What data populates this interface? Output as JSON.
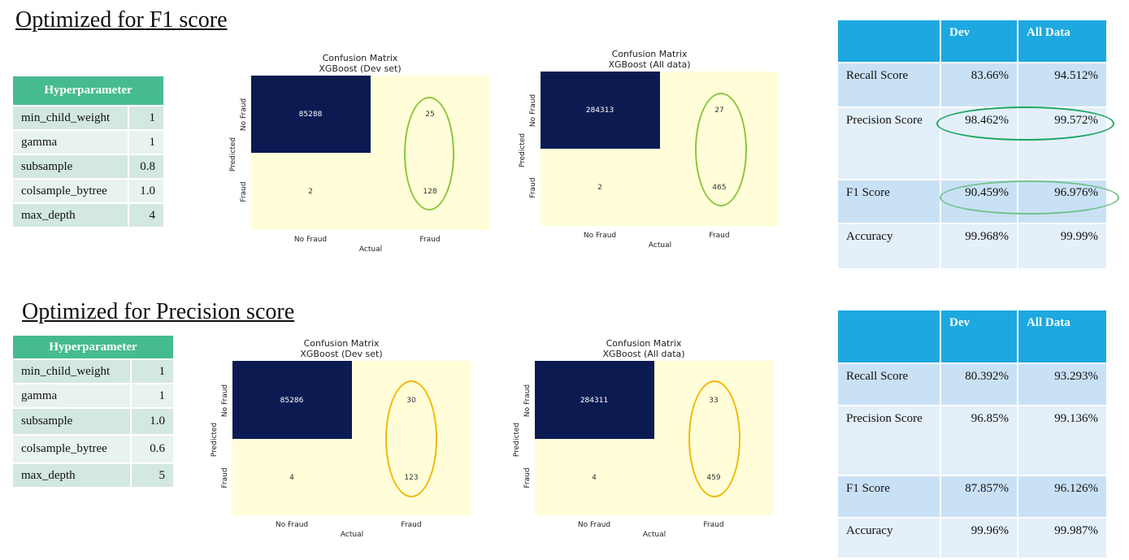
{
  "colors": {
    "ring_top": "#8cc63f",
    "ring_bottom": "#f2b705",
    "oval_precision": "#1aa661",
    "oval_f1": "#72c28e",
    "header_green": "#46bb8f",
    "header_blue": "#1ea8e0",
    "matrix_dark": "#0b1b52",
    "matrix_light": "#fffed8"
  },
  "sections": [
    {
      "title": "Optimized for F1 score",
      "hyperparameters": {
        "header": "Hyperparameter",
        "rows": [
          {
            "name": "min_child_weight",
            "value": "1"
          },
          {
            "name": "gamma",
            "value": "1"
          },
          {
            "name": "subsample",
            "value": "0.8"
          },
          {
            "name": "colsample_bytree",
            "value": "1.0"
          },
          {
            "name": "max_depth",
            "value": "4"
          }
        ]
      },
      "matrices": [
        {
          "title_line1": "Confusion Matrix",
          "title_line2": "XGBoost (Dev set)",
          "ylabel": "Predicted",
          "xlabel": "Actual",
          "row_labels": [
            "No Fraud",
            "Fraud"
          ],
          "col_labels": [
            "No Fraud",
            "Fraud"
          ],
          "values": [
            [
              "85288",
              "25"
            ],
            [
              "2",
              "128"
            ]
          ]
        },
        {
          "title_line1": "Confusion Matrix",
          "title_line2": "XGBoost (All data)",
          "ylabel": "Predicted",
          "xlabel": "Actual",
          "row_labels": [
            "No Fraud",
            "Fraud"
          ],
          "col_labels": [
            "No Fraud",
            "Fraud"
          ],
          "values": [
            [
              "284313",
              "27"
            ],
            [
              "2",
              "465"
            ]
          ]
        }
      ],
      "metrics": {
        "headers": [
          "",
          "Dev",
          "All Data"
        ],
        "rows": [
          {
            "name": "Recall Score",
            "dev": "83.66%",
            "all": "94.512%"
          },
          {
            "name": "Precision Score",
            "dev": "98.462%",
            "all": "99.572%"
          },
          {
            "name": "F1 Score",
            "dev": "90.459%",
            "all": "96.976%"
          },
          {
            "name": "Accuracy",
            "dev": "99.968%",
            "all": "99.99%"
          }
        ]
      }
    },
    {
      "title": "Optimized for Precision score",
      "hyperparameters": {
        "header": "Hyperparameter",
        "rows": [
          {
            "name": "min_child_weight",
            "value": "1"
          },
          {
            "name": "gamma",
            "value": "1"
          },
          {
            "name": "subsample",
            "value": "1.0"
          },
          {
            "name": "colsample_bytree",
            "value": "0.6"
          },
          {
            "name": "max_depth",
            "value": "5"
          }
        ]
      },
      "matrices": [
        {
          "title_line1": "Confusion Matrix",
          "title_line2": "XGBoost (Dev set)",
          "ylabel": "Predicted",
          "xlabel": "Actual",
          "row_labels": [
            "No Fraud",
            "Fraud"
          ],
          "col_labels": [
            "No Fraud",
            "Fraud"
          ],
          "values": [
            [
              "85286",
              "30"
            ],
            [
              "4",
              "123"
            ]
          ]
        },
        {
          "title_line1": "Confusion Matrix",
          "title_line2": "XGBoost (All data)",
          "ylabel": "Predicted",
          "xlabel": "Actual",
          "row_labels": [
            "No Fraud",
            "Fraud"
          ],
          "col_labels": [
            "No Fraud",
            "Fraud"
          ],
          "values": [
            [
              "284311",
              "33"
            ],
            [
              "4",
              "459"
            ]
          ]
        }
      ],
      "metrics": {
        "headers": [
          "",
          "Dev",
          "All Data"
        ],
        "rows": [
          {
            "name": "Recall Score",
            "dev": "80.392%",
            "all": "93.293%"
          },
          {
            "name": "Precision Score",
            "dev": "96.85%",
            "all": "99.136%"
          },
          {
            "name": "F1 Score",
            "dev": "87.857%",
            "all": "96.126%"
          },
          {
            "name": "Accuracy",
            "dev": "99.96%",
            "all": "99.987%"
          }
        ]
      }
    }
  ]
}
